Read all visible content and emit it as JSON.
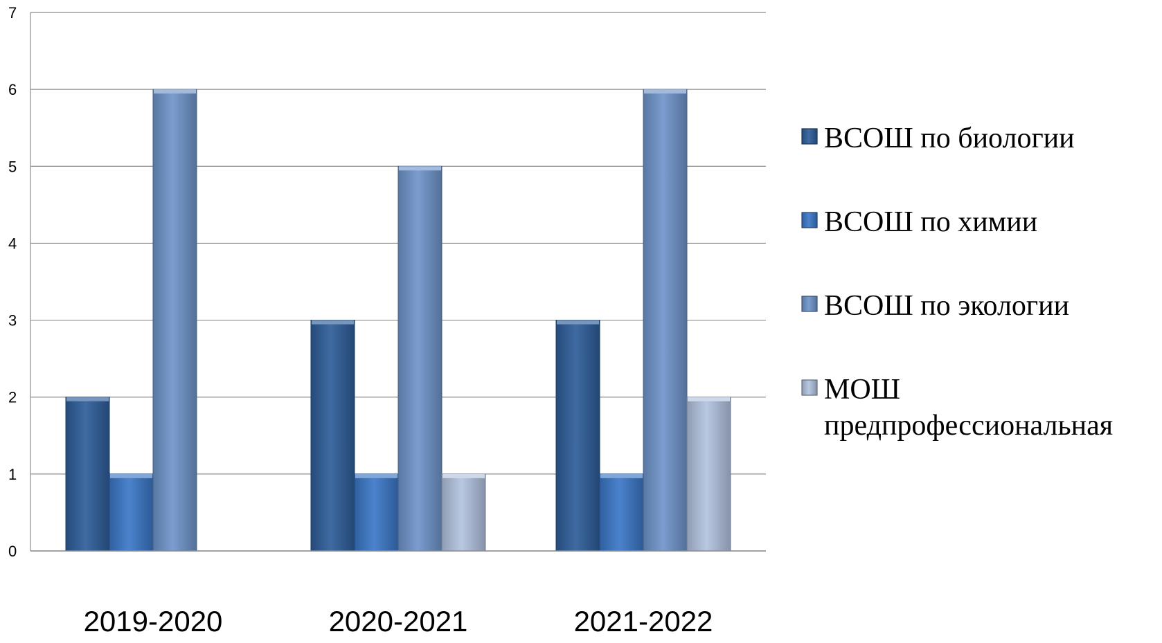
{
  "chart_data": {
    "type": "bar",
    "title": "",
    "xlabel": "",
    "ylabel": "",
    "categories": [
      "2019-2020",
      "2020-2021",
      "2021-2022"
    ],
    "ylim": [
      0,
      7
    ],
    "yticks": [
      0,
      1,
      2,
      3,
      4,
      5,
      6,
      7
    ],
    "grid": true,
    "legend_position": "right",
    "series": [
      {
        "name": "ВСОШ по биологии",
        "values": [
          2,
          3,
          3
        ],
        "color": "#2e5e9a"
      },
      {
        "name": "ВСОШ по химии",
        "values": [
          1,
          1,
          1
        ],
        "color": "#3b78c8"
      },
      {
        "name": "ВСОШ по экологии",
        "values": [
          6,
          5,
          6
        ],
        "color": "#6f95cb"
      },
      {
        "name": "МОШ предпрофессиональная",
        "name_lines": [
          "МОШ",
          "предпрофессиональная"
        ],
        "values": [
          null,
          1,
          2
        ],
        "color": "#b3c3e0"
      }
    ]
  }
}
